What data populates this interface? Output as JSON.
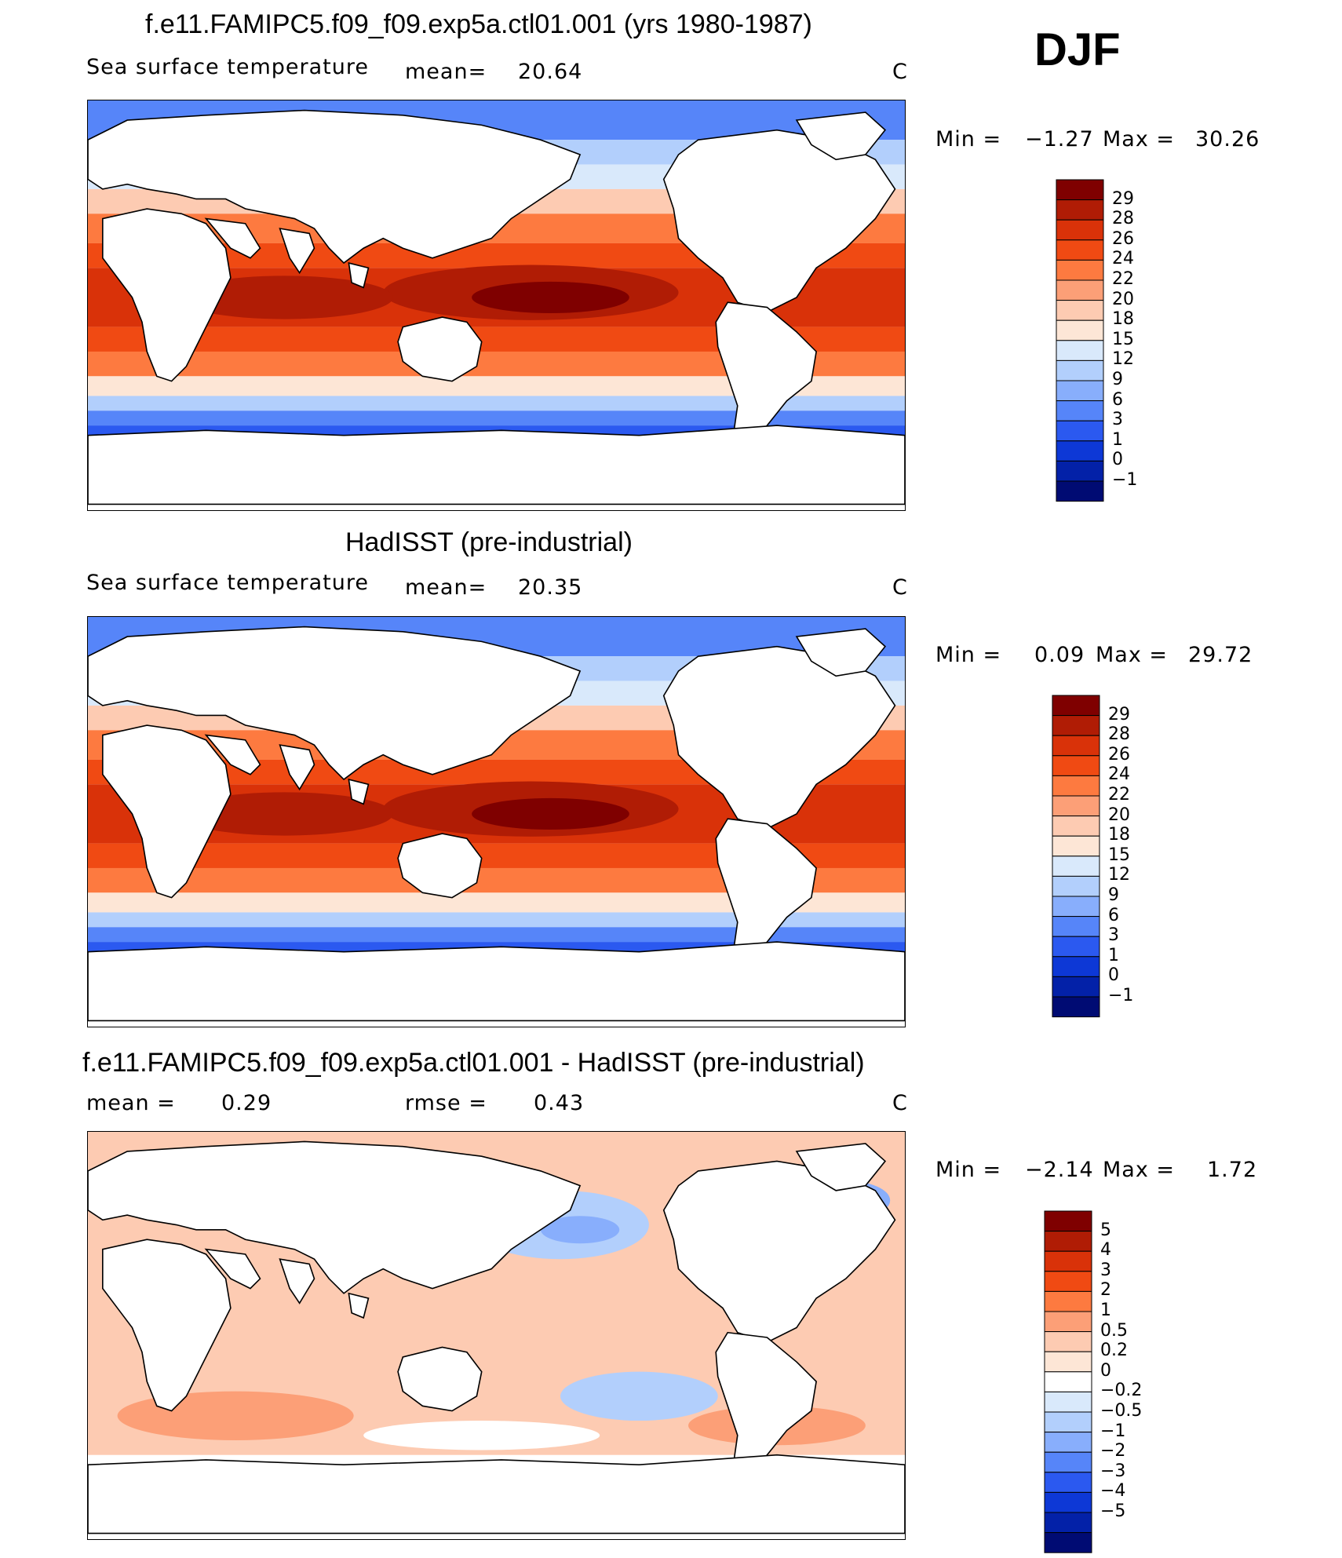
{
  "season": "DJF",
  "colors": {
    "sst": [
      "#7f0000",
      "#b01c05",
      "#d93209",
      "#f04a13",
      "#fd7a40",
      "#fc9f77",
      "#fdcbb2",
      "#fde6d6",
      "#d9e9fb",
      "#b2cffc",
      "#88aefc",
      "#5685f9",
      "#2b59f0",
      "#0d38d6",
      "#0321a8",
      "#000b73"
    ],
    "diff": [
      "#7f0000",
      "#b01c05",
      "#d93209",
      "#f04a13",
      "#fd7a40",
      "#fc9f77",
      "#fdcbb2",
      "#fde6d6",
      "#ffffff",
      "#d9e9fb",
      "#b2cffc",
      "#88aefc",
      "#5685f9",
      "#2b59f0",
      "#0d38d6",
      "#0321a8",
      "#000b73"
    ]
  },
  "panels": [
    {
      "title": "f.e11.FAMIPC5.f09_f09.exp5a.ctl01.001 (yrs 1980-1987)",
      "left_label": "Sea surface temperature",
      "stat_label": "mean=",
      "stat_value": "20.64",
      "units": "C",
      "min_label": "Min =",
      "min_value": "−1.27",
      "max_label": "Max =",
      "max_value": "30.26",
      "colorbar_levels": [
        "29",
        "28",
        "26",
        "24",
        "22",
        "20",
        "18",
        "15",
        "12",
        "9",
        "6",
        "3",
        "1",
        "0",
        "−1"
      ]
    },
    {
      "title": "HadISST (pre-industrial)",
      "left_label": "Sea surface temperature",
      "stat_label": "mean=",
      "stat_value": "20.35",
      "units": "C",
      "min_label": "Min =",
      "min_value": "0.09",
      "max_label": "Max =",
      "max_value": "29.72",
      "colorbar_levels": [
        "29",
        "28",
        "26",
        "24",
        "22",
        "20",
        "18",
        "15",
        "12",
        "9",
        "6",
        "3",
        "1",
        "0",
        "−1"
      ]
    },
    {
      "title": "f.e11.FAMIPC5.f09_f09.exp5a.ctl01.001 - HadISST (pre-industrial)",
      "left_label": "mean =",
      "left_value": "0.29",
      "stat_label": "rmse =",
      "stat_value": "0.43",
      "units": "C",
      "min_label": "Min =",
      "min_value": "−2.14",
      "max_label": "Max =",
      "max_value": "1.72",
      "colorbar_levels": [
        "5",
        "4",
        "3",
        "2",
        "1",
        "0.5",
        "0.2",
        "0",
        "−0.2",
        "−0.5",
        "−1",
        "−2",
        "−3",
        "−4",
        "−5"
      ]
    }
  ]
}
